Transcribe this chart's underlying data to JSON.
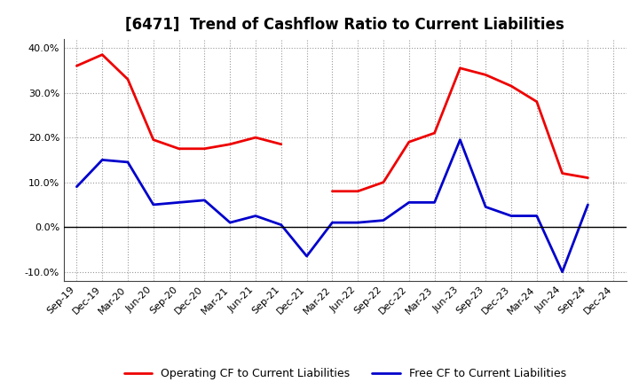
{
  "title": "[6471]  Trend of Cashflow Ratio to Current Liabilities",
  "labels": [
    "Sep-19",
    "Dec-19",
    "Mar-20",
    "Jun-20",
    "Sep-20",
    "Dec-20",
    "Mar-21",
    "Jun-21",
    "Sep-21",
    "Dec-21",
    "Mar-22",
    "Jun-22",
    "Sep-22",
    "Dec-22",
    "Mar-23",
    "Jun-23",
    "Sep-23",
    "Dec-23",
    "Mar-24",
    "Jun-24",
    "Sep-24",
    "Dec-24"
  ],
  "operating_cf": [
    36.0,
    38.5,
    33.0,
    19.5,
    17.5,
    17.5,
    18.5,
    20.0,
    18.5,
    null,
    8.0,
    8.0,
    10.0,
    19.0,
    21.0,
    35.5,
    34.0,
    31.5,
    28.0,
    12.0,
    11.0,
    null
  ],
  "free_cf": [
    9.0,
    15.0,
    14.5,
    5.0,
    5.5,
    6.0,
    1.0,
    2.5,
    0.5,
    -6.5,
    1.0,
    1.0,
    1.5,
    5.5,
    5.5,
    19.5,
    4.5,
    2.5,
    2.5,
    -10.0,
    5.0,
    null
  ],
  "ylim": [
    -12.0,
    42.0
  ],
  "yticks": [
    -10.0,
    0.0,
    10.0,
    20.0,
    30.0,
    40.0
  ],
  "operating_color": "#EE0000",
  "free_color": "#0000CC",
  "background_color": "#FFFFFF",
  "plot_bg_color": "#FFFFFF",
  "grid_color": "#999999",
  "legend_op": "Operating CF to Current Liabilities",
  "legend_free": "Free CF to Current Liabilities",
  "title_fontsize": 12,
  "tick_fontsize": 8,
  "legend_fontsize": 9
}
